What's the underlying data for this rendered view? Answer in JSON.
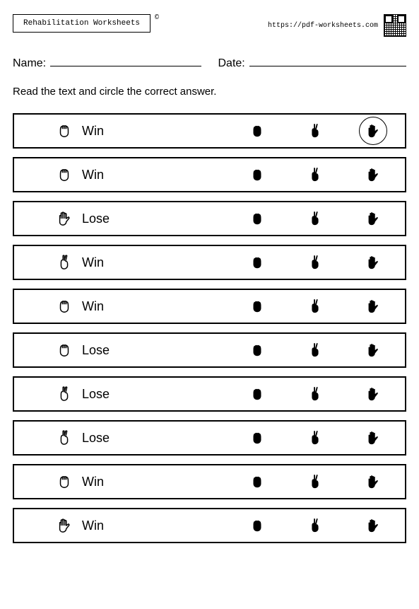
{
  "header": {
    "title": "Rehabilitation Worksheets",
    "copyright": "©",
    "url": "https://pdf-worksheets.com"
  },
  "fields": {
    "name_label": "Name:",
    "date_label": "Date:"
  },
  "instruction": "Read the text and circle the correct answer.",
  "icons": {
    "rock": "rock",
    "paper": "paper",
    "scissors": "scissors"
  },
  "choice_order": [
    "rock",
    "scissors",
    "paper"
  ],
  "rows": [
    {
      "prompt_icon": "rock",
      "prompt_text": "Win",
      "circled": 2
    },
    {
      "prompt_icon": "rock",
      "prompt_text": "Win",
      "circled": -1
    },
    {
      "prompt_icon": "paper",
      "prompt_text": "Lose",
      "circled": -1
    },
    {
      "prompt_icon": "scissors",
      "prompt_text": "Win",
      "circled": -1
    },
    {
      "prompt_icon": "rock",
      "prompt_text": "Win",
      "circled": -1
    },
    {
      "prompt_icon": "rock",
      "prompt_text": "Lose",
      "circled": -1
    },
    {
      "prompt_icon": "scissors",
      "prompt_text": "Lose",
      "circled": -1
    },
    {
      "prompt_icon": "scissors",
      "prompt_text": "Lose",
      "circled": -1
    },
    {
      "prompt_icon": "rock",
      "prompt_text": "Win",
      "circled": -1
    },
    {
      "prompt_icon": "paper",
      "prompt_text": "Win",
      "circled": -1
    }
  ],
  "colors": {
    "outline_icon": "#000000",
    "solid_icon": "#000000",
    "border": "#000000",
    "background": "#ffffff"
  }
}
